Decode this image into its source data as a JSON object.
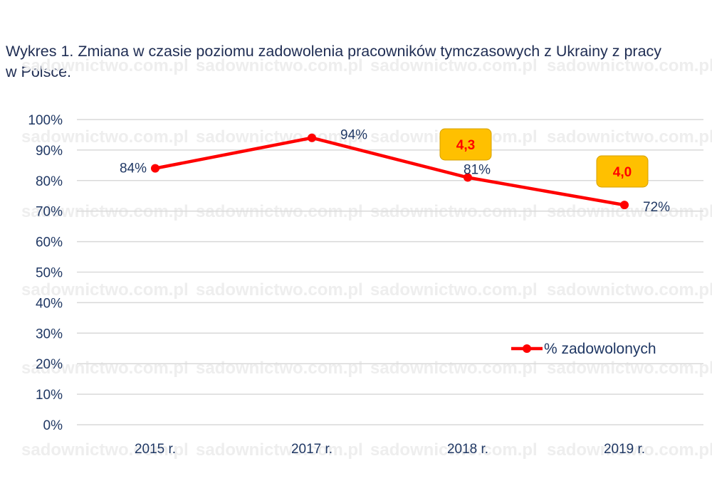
{
  "title_lines": [
    "Wykres 1. Zmiana w czasie poziomu zadowolenia pracowników tymczasowych z Ukrainy z pracy",
    "w Polsce."
  ],
  "watermark": "sadownictwo.com.pl",
  "chart_data": {
    "type": "line",
    "categories": [
      "2015 r.",
      "2017 r.",
      "2018 r.",
      "2019 r."
    ],
    "series": [
      {
        "name": "% zadowolonych",
        "values": [
          84,
          94,
          81,
          72
        ],
        "labels": [
          "84%",
          "94%",
          "81%",
          "72%"
        ],
        "color": "#ff0000"
      }
    ],
    "ylim": [
      0,
      100
    ],
    "yticks": [
      "0%",
      "10%",
      "20%",
      "30%",
      "40%",
      "50%",
      "60%",
      "70%",
      "80%",
      "90%",
      "100%"
    ],
    "grid": true,
    "legend_position": "right",
    "annotations": [
      {
        "category": "2018 r.",
        "text": "4,3",
        "fill": "#ffc000"
      },
      {
        "category": "2019 r.",
        "text": "4,0",
        "fill": "#ffc000"
      }
    ]
  }
}
